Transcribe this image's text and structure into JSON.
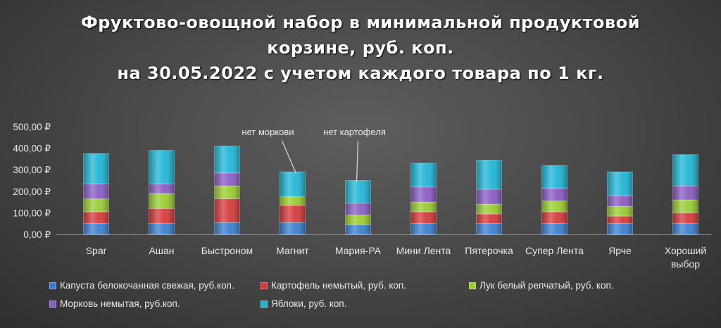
{
  "title_lines": [
    "Фруктово-овощной набор в минимальной продуктовой",
    "корзине, руб. коп.",
    "на 30.05.2022 с учетом каждого товара по 1 кг."
  ],
  "chart_data": {
    "type": "bar",
    "stacked": true,
    "categories": [
      "Spar",
      "Ашан",
      "Быстроном",
      "Магнит",
      "Мария-РА",
      "Мини Лента",
      "Пятерочка",
      "Супер Лента",
      "Ярче",
      "Хороший выбор"
    ],
    "series": [
      {
        "name": "Капуста белокочанная свежая, руб.коп.",
        "color": "#3a7fd0",
        "values": [
          50,
          50,
          55,
          55,
          45,
          50,
          50,
          50,
          50,
          50
        ]
      },
      {
        "name": "Картофель немытый, руб. коп.",
        "color": "#d63a3a",
        "values": [
          55,
          70,
          110,
          80,
          0,
          55,
          45,
          55,
          35,
          50
        ]
      },
      {
        "name": "Лук белый репчатый, руб. коп.",
        "color": "#9acd32",
        "values": [
          60,
          70,
          60,
          40,
          45,
          45,
          45,
          50,
          45,
          60
        ]
      },
      {
        "name": "Морковь немытая, руб.коп.",
        "color": "#8a5cc4",
        "values": [
          70,
          45,
          60,
          0,
          55,
          70,
          70,
          60,
          50,
          65
        ]
      },
      {
        "name": "Яблоки, руб. коп.",
        "color": "#1fb6d6",
        "values": [
          140,
          155,
          125,
          115,
          105,
          110,
          135,
          105,
          110,
          145
        ]
      }
    ],
    "y_ticks": [
      "0,00 ₽",
      "100,00 ₽",
      "200,00 ₽",
      "300,00 ₽",
      "400,00 ₽",
      "500,00 ₽"
    ],
    "ylim": [
      0,
      500
    ],
    "grid": false,
    "legend_position": "bottom",
    "annotations": [
      {
        "text": "нет моркови",
        "category": "Магнит"
      },
      {
        "text": "нет картофеля",
        "category": "Мария-РА"
      }
    ]
  }
}
